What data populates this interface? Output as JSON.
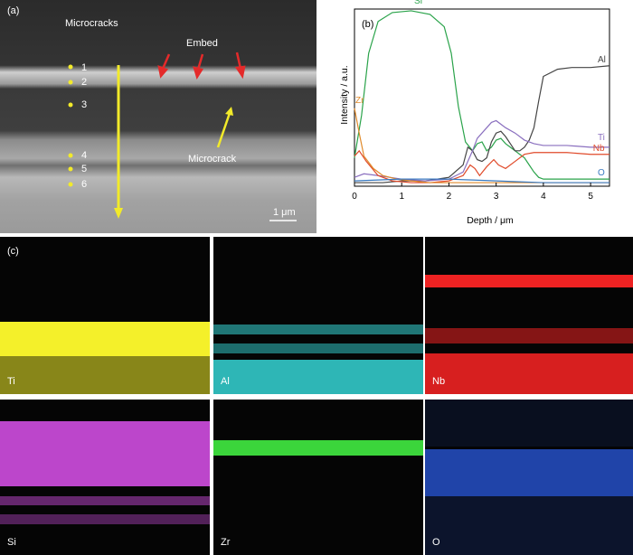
{
  "panel_a": {
    "tag": "(a)",
    "label_microcracks": "Microcracks",
    "label_embed": "Embed",
    "label_microcrack": "Microcrack",
    "points": [
      "1",
      "2",
      "3",
      "4",
      "5",
      "6"
    ],
    "scale_bar": "1 μm"
  },
  "chart_data": {
    "type": "line",
    "tag": "(b)",
    "xlabel": "Depth / μm",
    "ylabel": "Intensity / a.u.",
    "xlim": [
      0,
      5.4
    ],
    "ylim": [
      0,
      1
    ],
    "xticks": [
      "0",
      "1",
      "2",
      "3",
      "4",
      "5"
    ],
    "series": [
      {
        "name": "Si",
        "color": "#2aa34a",
        "x": [
          0,
          0.15,
          0.3,
          0.5,
          0.8,
          1.2,
          1.6,
          1.9,
          2.05,
          2.2,
          2.35,
          2.5,
          2.6,
          2.7,
          2.8,
          2.9,
          3.0,
          3.1,
          3.2,
          3.3,
          3.4,
          3.5,
          3.6,
          3.7,
          3.8,
          3.9,
          4.0,
          5.4
        ],
        "y": [
          0.16,
          0.4,
          0.75,
          0.93,
          0.98,
          0.99,
          0.97,
          0.9,
          0.75,
          0.45,
          0.25,
          0.2,
          0.24,
          0.25,
          0.2,
          0.22,
          0.26,
          0.27,
          0.24,
          0.22,
          0.2,
          0.18,
          0.16,
          0.12,
          0.08,
          0.05,
          0.04,
          0.04
        ]
      },
      {
        "name": "Al",
        "color": "#444444",
        "x": [
          0,
          0.3,
          0.6,
          1.0,
          1.5,
          2.0,
          2.3,
          2.4,
          2.5,
          2.6,
          2.7,
          2.8,
          2.9,
          3.0,
          3.1,
          3.2,
          3.3,
          3.4,
          3.5,
          3.6,
          3.7,
          3.8,
          3.9,
          4.0,
          4.3,
          4.6,
          5.0,
          5.4
        ],
        "y": [
          0.02,
          0.02,
          0.02,
          0.03,
          0.03,
          0.05,
          0.12,
          0.22,
          0.2,
          0.15,
          0.14,
          0.16,
          0.25,
          0.3,
          0.31,
          0.28,
          0.24,
          0.2,
          0.2,
          0.22,
          0.26,
          0.33,
          0.48,
          0.62,
          0.66,
          0.67,
          0.67,
          0.68
        ]
      },
      {
        "name": "Ti",
        "color": "#8a6fbf",
        "x": [
          0,
          0.2,
          0.5,
          1.0,
          1.5,
          2.0,
          2.3,
          2.5,
          2.6,
          2.7,
          2.8,
          2.9,
          3.0,
          3.2,
          3.4,
          3.6,
          3.8,
          4.0,
          4.5,
          5.0,
          5.4
        ],
        "y": [
          0.05,
          0.07,
          0.06,
          0.04,
          0.03,
          0.04,
          0.08,
          0.2,
          0.27,
          0.3,
          0.33,
          0.36,
          0.37,
          0.33,
          0.3,
          0.26,
          0.24,
          0.23,
          0.23,
          0.22,
          0.22
        ]
      },
      {
        "name": "Nb",
        "color": "#e04a2a",
        "x": [
          0,
          0.1,
          0.25,
          0.5,
          0.8,
          1.2,
          1.6,
          2.0,
          2.3,
          2.45,
          2.55,
          2.65,
          2.8,
          2.95,
          3.05,
          3.2,
          3.4,
          3.6,
          3.8,
          4.0,
          4.5,
          5.0,
          5.4
        ],
        "y": [
          0.17,
          0.2,
          0.14,
          0.06,
          0.03,
          0.02,
          0.02,
          0.03,
          0.06,
          0.12,
          0.1,
          0.06,
          0.11,
          0.15,
          0.12,
          0.1,
          0.14,
          0.18,
          0.19,
          0.19,
          0.19,
          0.18,
          0.18
        ]
      },
      {
        "name": "Zr",
        "color": "#e08a2a",
        "x": [
          0,
          0.1,
          0.2,
          0.4,
          0.6,
          0.9,
          1.2,
          1.6,
          2.0,
          2.5,
          3.0,
          3.5,
          4.0,
          5.4
        ],
        "y": [
          0.44,
          0.3,
          0.17,
          0.1,
          0.06,
          0.04,
          0.03,
          0.02,
          0.02,
          0.02,
          0.02,
          0.02,
          0.02,
          0.02
        ]
      },
      {
        "name": "O",
        "color": "#3a7ac0",
        "x": [
          0,
          0.5,
          1.0,
          1.5,
          2.0,
          2.5,
          3.0,
          3.5,
          4.0,
          4.5,
          5.0,
          5.4
        ],
        "y": [
          0.03,
          0.035,
          0.04,
          0.04,
          0.04,
          0.035,
          0.03,
          0.025,
          0.02,
          0.02,
          0.02,
          0.02
        ]
      }
    ]
  },
  "panel_c": {
    "tag": "(c)",
    "maps": [
      {
        "element": "Ti",
        "color": "#f4f02a"
      },
      {
        "element": "Al",
        "color": "#36d6d6"
      },
      {
        "element": "Nb",
        "color": "#ee2222"
      },
      {
        "element": "Si",
        "color": "#c64ad6"
      },
      {
        "element": "Zr",
        "color": "#3ee03e"
      },
      {
        "element": "O",
        "color": "#2a5ae0"
      }
    ]
  }
}
